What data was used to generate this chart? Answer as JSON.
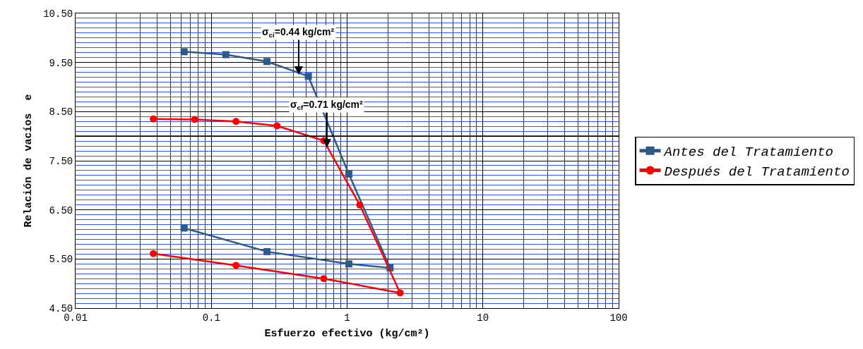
{
  "chart_data": {
    "type": "line",
    "xlabel": "Esfuerzo efectivo (kg/cm²)",
    "ylabel": "Relación de vacíos  e",
    "xlim": [
      0.01,
      100
    ],
    "xticks": [
      0.01,
      0.1,
      1,
      10,
      100
    ],
    "log": "x",
    "ylim": [
      4.5,
      10.5
    ],
    "yticks": [
      {
        "value": 4.5,
        "label": "4.50"
      },
      {
        "value": 4.6,
        "label": null
      },
      {
        "value": 4.7,
        "label": null
      },
      {
        "value": 4.8,
        "label": null
      },
      {
        "value": 4.9,
        "label": null
      },
      {
        "value": 5.0,
        "label": null
      },
      {
        "value": 5.1,
        "label": null
      },
      {
        "value": 5.2,
        "label": null
      },
      {
        "value": 5.3,
        "label": null
      },
      {
        "value": 5.4,
        "label": null
      },
      {
        "value": 5.5,
        "label": "5.50"
      },
      {
        "value": 5.6,
        "label": null
      },
      {
        "value": 5.7,
        "label": null
      },
      {
        "value": 5.8,
        "label": null
      },
      {
        "value": 5.9,
        "label": null
      },
      {
        "value": 6.0,
        "label": null
      },
      {
        "value": 6.1,
        "label": null
      },
      {
        "value": 6.2,
        "label": null
      },
      {
        "value": 6.3,
        "label": null
      },
      {
        "value": 6.4,
        "label": null
      },
      {
        "value": 6.5,
        "label": "6.50"
      },
      {
        "value": 6.6,
        "label": null
      },
      {
        "value": 6.7,
        "label": null
      },
      {
        "value": 6.8,
        "label": null
      },
      {
        "value": 6.9,
        "label": null
      },
      {
        "value": 7.0,
        "label": null
      },
      {
        "value": 7.1,
        "label": null
      },
      {
        "value": 7.2,
        "label": null
      },
      {
        "value": 7.3,
        "label": null
      },
      {
        "value": 7.4,
        "label": null
      },
      {
        "value": 7.5,
        "label": "7.50"
      },
      {
        "value": 7.6,
        "label": null
      },
      {
        "value": 7.7,
        "label": null
      },
      {
        "value": 7.8,
        "label": null
      },
      {
        "value": 7.9,
        "label": null
      },
      {
        "value": 8.1,
        "label": null
      },
      {
        "value": 8.2,
        "label": null
      },
      {
        "value": 8.3,
        "label": null
      },
      {
        "value": 8.4,
        "label": null
      },
      {
        "value": 8.5,
        "label": "8.50"
      },
      {
        "value": 8.6,
        "label": null
      },
      {
        "value": 8.7,
        "label": null
      },
      {
        "value": 8.8,
        "label": null
      },
      {
        "value": 8.9,
        "label": null
      },
      {
        "value": 9.0,
        "label": null
      },
      {
        "value": 9.1,
        "label": null
      },
      {
        "value": 9.2,
        "label": null
      },
      {
        "value": 9.3,
        "label": null
      },
      {
        "value": 9.4,
        "label": null
      },
      {
        "value": 9.5,
        "label": "9.50"
      },
      {
        "value": 9.6,
        "label": null
      },
      {
        "value": 9.7,
        "label": null
      },
      {
        "value": 9.8,
        "label": null
      },
      {
        "value": 9.9,
        "label": null
      },
      {
        "value": 10.0,
        "label": null
      },
      {
        "value": 10.1,
        "label": null
      },
      {
        "value": 10.2,
        "label": null
      },
      {
        "value": 10.3,
        "label": null
      },
      {
        "value": 10.4,
        "label": null
      },
      {
        "value": 10.5,
        "label": "10.50"
      }
    ],
    "grid": true,
    "legend": "right",
    "series": [
      {
        "name": "Antes del Tratamiento",
        "color": "#2e5a88",
        "marker": "square",
        "x": [
          0.063,
          0.128,
          0.257,
          0.518,
          1.03,
          2.07,
          1.03,
          0.257,
          0.063
        ],
        "values": [
          9.72,
          9.66,
          9.52,
          9.22,
          7.23,
          5.32,
          5.4,
          5.65,
          6.13
        ]
      },
      {
        "name": "Después del Tratamiento",
        "color": "#ff0000",
        "marker": "circle",
        "x": [
          0.0374,
          0.0753,
          0.152,
          0.305,
          0.673,
          1.24,
          2.46,
          0.673,
          0.152,
          0.0374
        ],
        "values": [
          8.35,
          8.34,
          8.3,
          8.21,
          7.91,
          6.6,
          4.81,
          5.1,
          5.37,
          5.61
        ]
      }
    ],
    "ref_lines": [
      {
        "axis": "y",
        "value": 8.0,
        "color": "#000000"
      }
    ],
    "annotations": [
      {
        "text": "σ$_{ci}$=0.44 kg/cm²",
        "x": 0.44,
        "y": 9.25
      },
      {
        "text": "σ$_{cf}$=0.71 kg/cm²",
        "x": 0.71,
        "y": 7.77
      }
    ]
  }
}
